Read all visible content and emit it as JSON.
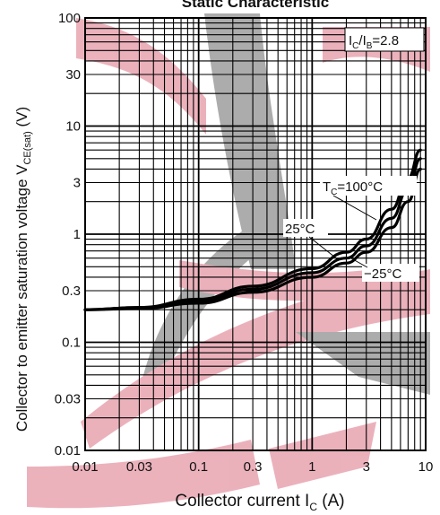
{
  "chart_data": {
    "type": "line",
    "title": "Static Characteristic",
    "xlabel": "Collector current",
    "xlabel_symbol": "I",
    "xlabel_subscript": "C",
    "xlabel_unit": "(A)",
    "ylabel": "Collector to emitter saturation voltage",
    "ylabel_symbol": "V",
    "ylabel_subscript": "CE(sat)",
    "ylabel_unit": "(V)",
    "x_scale": "log",
    "y_scale": "log",
    "xlim": [
      0.01,
      10
    ],
    "ylim": [
      0.01,
      100
    ],
    "grid": true,
    "x_ticks": [
      "0.01",
      "0.03",
      "0.1",
      "0.3",
      "1",
      "3",
      "10"
    ],
    "y_ticks": [
      "0.01",
      "0.03",
      "0.1",
      "0.3",
      "1",
      "3",
      "10",
      "30",
      "100"
    ],
    "condition": {
      "prefix": "I",
      "sub1": "C",
      "mid": "/I",
      "sub2": "B",
      "suffix": "=2.8"
    },
    "series": [
      {
        "name": "TC=100°C",
        "label_main": "T",
        "label_sub": "C",
        "label_rest": "=100°C",
        "x": [
          0.01,
          0.03,
          0.1,
          0.3,
          1,
          2,
          3,
          5,
          7,
          9
        ],
        "y": [
          0.2,
          0.21,
          0.25,
          0.33,
          0.48,
          0.68,
          0.9,
          1.7,
          3.3,
          6.0
        ]
      },
      {
        "name": "25°C",
        "label_main": "25°C",
        "x": [
          0.01,
          0.03,
          0.1,
          0.3,
          1,
          2,
          3,
          5,
          7,
          9
        ],
        "y": [
          0.2,
          0.21,
          0.24,
          0.31,
          0.44,
          0.6,
          0.78,
          1.4,
          2.6,
          5.0
        ]
      },
      {
        "name": "−25°C",
        "label_main": "−25°C",
        "x": [
          0.01,
          0.03,
          0.1,
          0.3,
          1,
          2,
          3,
          5,
          7,
          9
        ],
        "y": [
          0.2,
          0.205,
          0.23,
          0.29,
          0.4,
          0.54,
          0.68,
          1.15,
          2.0,
          4.0
        ]
      }
    ],
    "colors": {
      "watermark_pink": "#e8a4b0",
      "watermark_gray": "#9e9e9e",
      "grid": "#000000",
      "curve": "#000000"
    }
  }
}
